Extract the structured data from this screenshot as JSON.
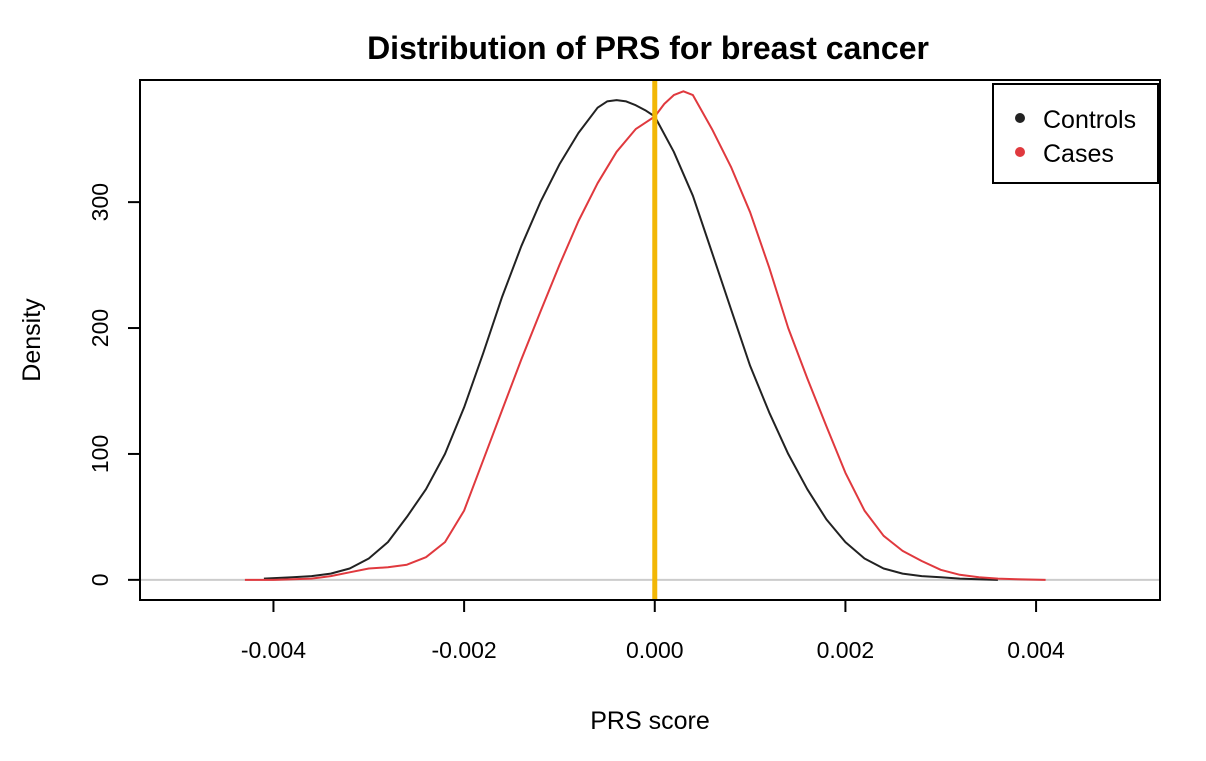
{
  "chart_data": {
    "type": "line",
    "title": "Distribution of PRS for breast cancer",
    "xlabel": "PRS score",
    "ylabel": "Density",
    "xlim": [
      -0.0054,
      0.0053
    ],
    "ylim": [
      -16,
      397
    ],
    "xticks": [
      -0.004,
      -0.002,
      0.0,
      0.002,
      0.004
    ],
    "xtick_labels": [
      "-0.004",
      "-0.002",
      "0.000",
      "0.002",
      "0.004"
    ],
    "yticks": [
      0,
      100,
      200,
      300
    ],
    "ytick_labels": [
      "0",
      "100",
      "200",
      "300"
    ],
    "reference_hline": 0,
    "reference_vline": 0.0,
    "legend_position": "top-right",
    "series": [
      {
        "name": "Controls",
        "color": "#222222",
        "x": [
          -0.0041,
          -0.0038,
          -0.0036,
          -0.0034,
          -0.0032,
          -0.003,
          -0.0028,
          -0.0026,
          -0.0024,
          -0.0022,
          -0.002,
          -0.0018,
          -0.0016,
          -0.0014,
          -0.0012,
          -0.001,
          -0.0008,
          -0.0006,
          -0.0005,
          -0.0004,
          -0.0003,
          -0.0002,
          -0.0001,
          0.0,
          0.0002,
          0.0004,
          0.0006,
          0.0008,
          0.001,
          0.0012,
          0.0014,
          0.0016,
          0.0018,
          0.002,
          0.0022,
          0.0024,
          0.0026,
          0.0028,
          0.003,
          0.0032,
          0.0034,
          0.0036
        ],
        "y": [
          1,
          2,
          3,
          5,
          9,
          17,
          30,
          50,
          72,
          100,
          137,
          180,
          225,
          265,
          300,
          330,
          355,
          375,
          380,
          381,
          380,
          377,
          373,
          368,
          340,
          305,
          260,
          215,
          170,
          133,
          100,
          72,
          48,
          30,
          17,
          9,
          5,
          3,
          2,
          1,
          0.5,
          0
        ]
      },
      {
        "name": "Cases",
        "color": "#e0393e",
        "x": [
          -0.0043,
          -0.004,
          -0.0036,
          -0.0034,
          -0.0032,
          -0.003,
          -0.0028,
          -0.0026,
          -0.0024,
          -0.0022,
          -0.002,
          -0.0018,
          -0.0016,
          -0.0014,
          -0.0012,
          -0.001,
          -0.0008,
          -0.0006,
          -0.0004,
          -0.0002,
          -0.0001,
          0.0,
          0.0001,
          0.0002,
          0.0003,
          0.0004,
          0.0006,
          0.0008,
          0.001,
          0.0012,
          0.0014,
          0.0016,
          0.0018,
          0.002,
          0.0022,
          0.0024,
          0.0026,
          0.0028,
          0.003,
          0.0032,
          0.0034,
          0.0036,
          0.0038,
          0.0041
        ],
        "y": [
          0,
          0,
          1,
          3,
          6,
          9,
          10,
          12,
          18,
          30,
          55,
          95,
          135,
          175,
          213,
          250,
          285,
          315,
          340,
          358,
          363,
          368,
          378,
          385,
          388,
          385,
          358,
          328,
          292,
          248,
          200,
          160,
          122,
          85,
          55,
          35,
          23,
          15,
          8,
          4,
          2,
          1,
          0.5,
          0
        ]
      }
    ]
  },
  "colors": {
    "vline": "#f2b705",
    "hline": "#cccccc",
    "frame": "#000000"
  }
}
